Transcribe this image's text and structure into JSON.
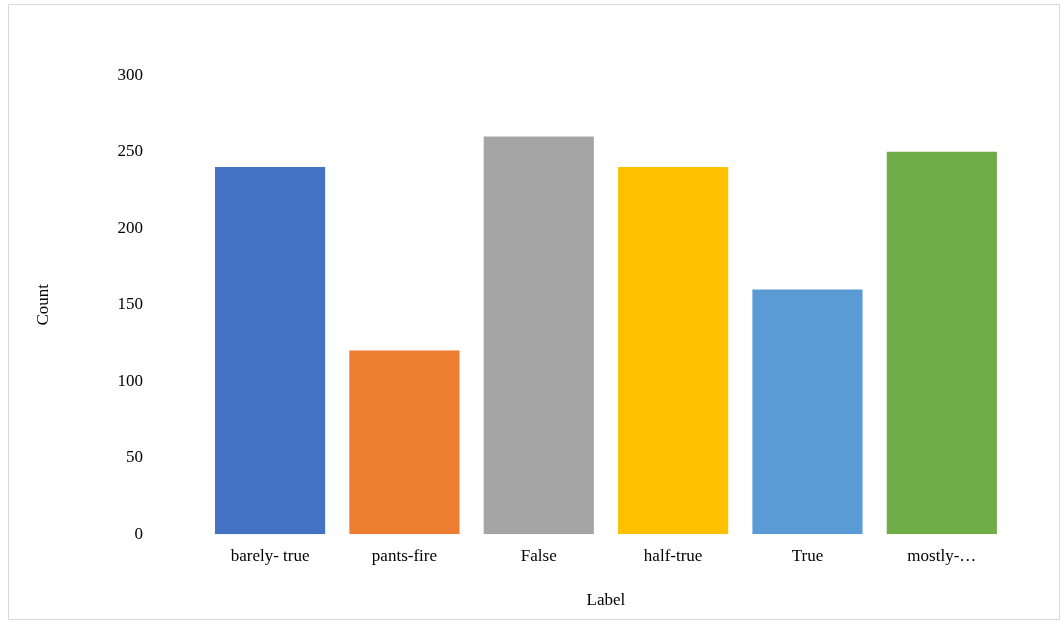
{
  "chart_data": {
    "type": "bar",
    "xlabel": "Label",
    "ylabel": "Count",
    "categories": [
      "barely- true",
      "pants-fire",
      "False",
      "half-true",
      "True",
      "mostly-…"
    ],
    "values": [
      240,
      120,
      260,
      240,
      160,
      250
    ],
    "colors": [
      "#4472c4",
      "#ed7d31",
      "#a5a5a5",
      "#ffc000",
      "#5b9bd5",
      "#70ad47"
    ],
    "ylim": [
      0,
      300
    ],
    "yticks": [
      0,
      50,
      100,
      150,
      200,
      250,
      300
    ],
    "grid": false,
    "legend": false
  }
}
